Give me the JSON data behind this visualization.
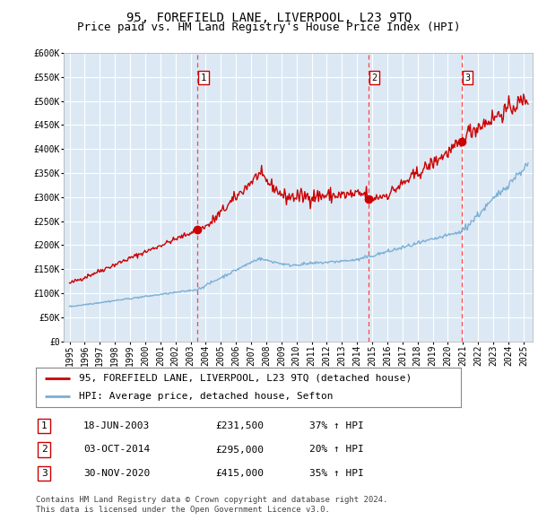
{
  "title": "95, FOREFIELD LANE, LIVERPOOL, L23 9TQ",
  "subtitle": "Price paid vs. HM Land Registry's House Price Index (HPI)",
  "background_color": "#dce9f5",
  "fig_bg_color": "#ffffff",
  "ylim": [
    0,
    600000
  ],
  "yticks": [
    0,
    50000,
    100000,
    150000,
    200000,
    250000,
    300000,
    350000,
    400000,
    450000,
    500000,
    550000,
    600000
  ],
  "ytick_labels": [
    "£0",
    "£50K",
    "£100K",
    "£150K",
    "£200K",
    "£250K",
    "£300K",
    "£350K",
    "£400K",
    "£450K",
    "£500K",
    "£550K",
    "£600K"
  ],
  "xlim_start": 1994.6,
  "xlim_end": 2025.6,
  "transactions": [
    {
      "num": 1,
      "date": "18-JUN-2003",
      "price": 231500,
      "pct": "37%",
      "dir": "↑",
      "year": 2003.46
    },
    {
      "num": 2,
      "date": "03-OCT-2014",
      "price": 295000,
      "pct": "20%",
      "dir": "↑",
      "year": 2014.75
    },
    {
      "num": 3,
      "date": "30-NOV-2020",
      "price": 415000,
      "pct": "35%",
      "dir": "↑",
      "year": 2020.92
    }
  ],
  "red_line_color": "#cc0000",
  "blue_line_color": "#7aafd4",
  "marker_color": "#cc0000",
  "vline_color": "#ff4444",
  "legend_label_red": "95, FOREFIELD LANE, LIVERPOOL, L23 9TQ (detached house)",
  "legend_label_blue": "HPI: Average price, detached house, Sefton",
  "footer": "Contains HM Land Registry data © Crown copyright and database right 2024.\nThis data is licensed under the Open Government Licence v3.0.",
  "grid_color": "#ffffff",
  "title_fontsize": 10,
  "subtitle_fontsize": 9,
  "tick_fontsize": 7,
  "legend_fontsize": 8,
  "table_fontsize": 8
}
